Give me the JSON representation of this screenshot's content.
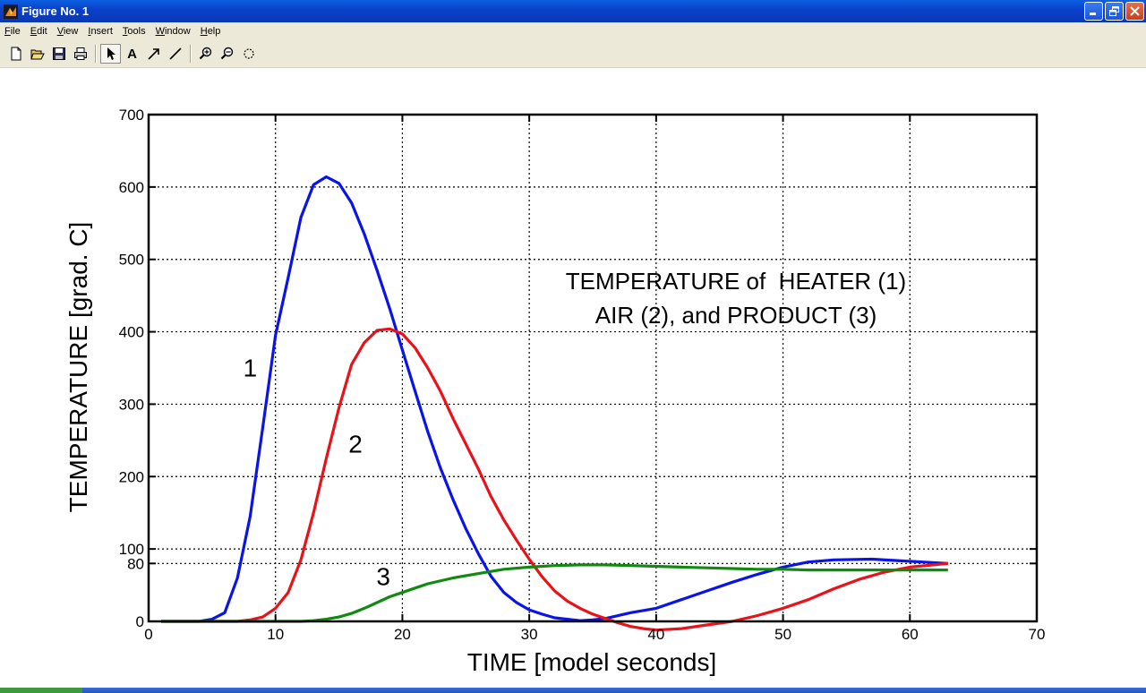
{
  "window": {
    "title": "Figure No. 1"
  },
  "menu": [
    {
      "label": "File",
      "ul": "F",
      "rest": "ile"
    },
    {
      "label": "Edit",
      "ul": "E",
      "rest": "dit"
    },
    {
      "label": "View",
      "ul": "V",
      "rest": "iew"
    },
    {
      "label": "Insert",
      "ul": "I",
      "rest": "nsert"
    },
    {
      "label": "Tools",
      "ul": "T",
      "rest": "ools"
    },
    {
      "label": "Window",
      "ul": "W",
      "rest": "indow"
    },
    {
      "label": "Help",
      "ul": "H",
      "rest": "elp"
    }
  ],
  "toolbar": {
    "text_tool_label": "A"
  },
  "colors": {
    "heater": "#0a14e6",
    "air": "#e8121a",
    "product": "#128a12"
  },
  "chart_data": {
    "type": "line",
    "xlabel": "TIME [model seconds]",
    "ylabel": "TEMPERATURE [grad. C]",
    "xlim": [
      0,
      70
    ],
    "ylim": [
      0,
      700
    ],
    "xticks": [
      0,
      10,
      20,
      30,
      40,
      50,
      60,
      70
    ],
    "yticks": [
      0,
      80,
      100,
      200,
      300,
      400,
      500,
      600,
      700
    ],
    "grid": true,
    "annotation_lines": [
      "TEMPERATURE of  HEATER (1)",
      "AIR (2), and PRODUCT (3)"
    ],
    "curve_labels": [
      {
        "text": "1",
        "x": 8,
        "y": 338
      },
      {
        "text": "2",
        "x": 16.3,
        "y": 233
      },
      {
        "text": "3",
        "x": 18.5,
        "y": 50
      }
    ],
    "series": [
      {
        "label": "1",
        "color": "#0a14e6",
        "x": [
          1,
          2,
          3,
          4,
          5,
          6,
          7,
          8,
          9,
          10,
          11,
          12,
          13,
          14,
          15,
          16,
          17,
          18,
          19,
          20,
          21,
          22,
          23,
          24,
          25,
          26,
          27,
          28,
          29,
          30,
          31,
          32,
          33,
          34,
          35,
          36,
          38,
          40,
          42,
          44,
          46,
          48,
          50,
          52,
          54,
          57,
          59,
          61,
          63
        ],
        "y": [
          0,
          0,
          0,
          0,
          3,
          12,
          60,
          145,
          268,
          395,
          475,
          558,
          603,
          614,
          605,
          578,
          535,
          485,
          432,
          375,
          318,
          262,
          212,
          168,
          128,
          93,
          62,
          40,
          26,
          16,
          10,
          5,
          3,
          1,
          2,
          4,
          12,
          18,
          30,
          42,
          54,
          65,
          75,
          82,
          85,
          86,
          84,
          82,
          80
        ]
      },
      {
        "label": "2",
        "color": "#e8121a",
        "x": [
          1,
          2,
          3,
          4,
          5,
          6,
          7,
          8,
          9,
          10,
          11,
          12,
          13,
          14,
          15,
          16,
          17,
          18,
          19,
          20,
          21,
          22,
          23,
          24,
          25,
          26,
          27,
          28,
          29,
          30,
          31,
          32,
          33,
          34,
          35,
          36,
          37,
          38,
          39,
          40,
          42,
          44,
          46,
          48,
          50,
          52,
          54,
          56,
          58,
          60,
          63
        ],
        "y": [
          0,
          0,
          0,
          0,
          0,
          0,
          0,
          2,
          6,
          18,
          40,
          85,
          150,
          225,
          295,
          355,
          385,
          402,
          404,
          397,
          378,
          350,
          318,
          280,
          245,
          210,
          172,
          140,
          112,
          86,
          62,
          42,
          28,
          18,
          10,
          4,
          -2,
          -7,
          -10,
          -12,
          -10,
          -5,
          0,
          8,
          18,
          30,
          45,
          58,
          68,
          75,
          80
        ]
      },
      {
        "label": "3",
        "color": "#128a12",
        "x": [
          1,
          5,
          8,
          10,
          11,
          12,
          13,
          14,
          15,
          16,
          17,
          18,
          19,
          20,
          21,
          22,
          24,
          26,
          28,
          30,
          32,
          34,
          36,
          38,
          40,
          42,
          44,
          46,
          48,
          50,
          52,
          54,
          56,
          58,
          60,
          63
        ],
        "y": [
          0,
          0,
          0,
          0,
          0,
          0,
          1,
          3,
          6,
          11,
          18,
          26,
          34,
          40,
          46,
          52,
          60,
          66,
          72,
          75,
          77,
          78,
          78,
          77,
          76,
          75,
          74,
          73,
          72,
          72,
          71,
          71,
          71,
          71,
          71,
          71
        ]
      }
    ]
  }
}
